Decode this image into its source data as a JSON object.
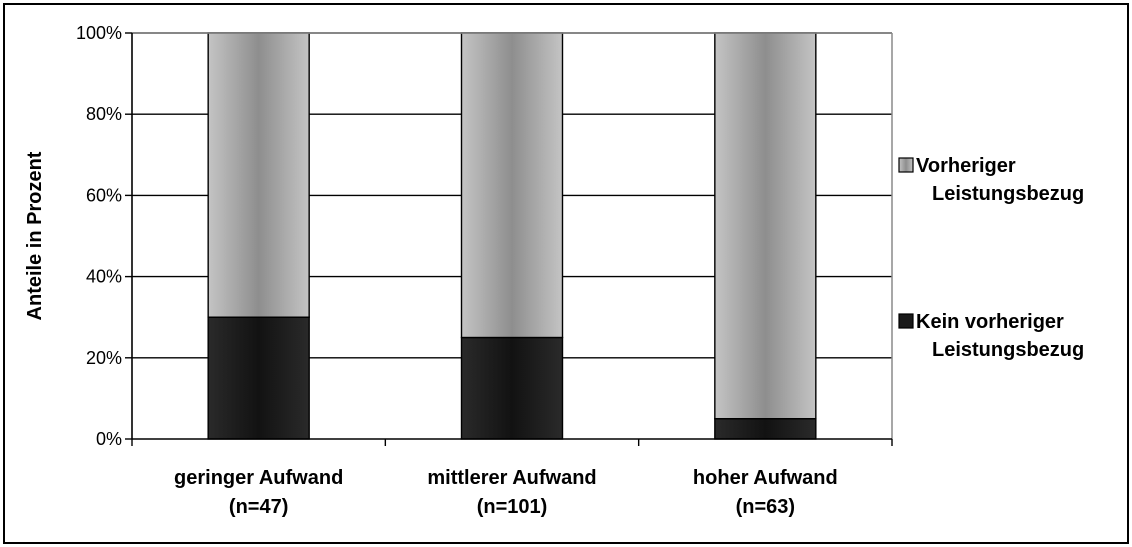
{
  "chart_data": {
    "type": "bar",
    "stacked": true,
    "categories": [
      "geringer Aufwand|(n=47)",
      "mittlerer Aufwand|(n=101)",
      "hoher Aufwand|(n=63)"
    ],
    "series": [
      {
        "name": "Kein vorheriger Leistungsbezug",
        "values": [
          30,
          25,
          5
        ],
        "color": "#222222"
      },
      {
        "name": "Vorheriger Leistungsbezug",
        "values": [
          70,
          75,
          95
        ],
        "color": "#a8a8a8"
      }
    ],
    "legend_order": [
      1,
      0
    ],
    "legend_lines": [
      [
        "Vorheriger",
        "Leistungsbezug"
      ],
      [
        "Kein vorheriger",
        "Leistungsbezug"
      ]
    ],
    "y_ticks": [
      "0%",
      "20%",
      "40%",
      "60%",
      "80%",
      "100%"
    ],
    "ylim": [
      0,
      100
    ],
    "ylabel": "Anteile in Prozent",
    "xlabel": "",
    "title": "",
    "grid": true,
    "legend_position": "right"
  }
}
